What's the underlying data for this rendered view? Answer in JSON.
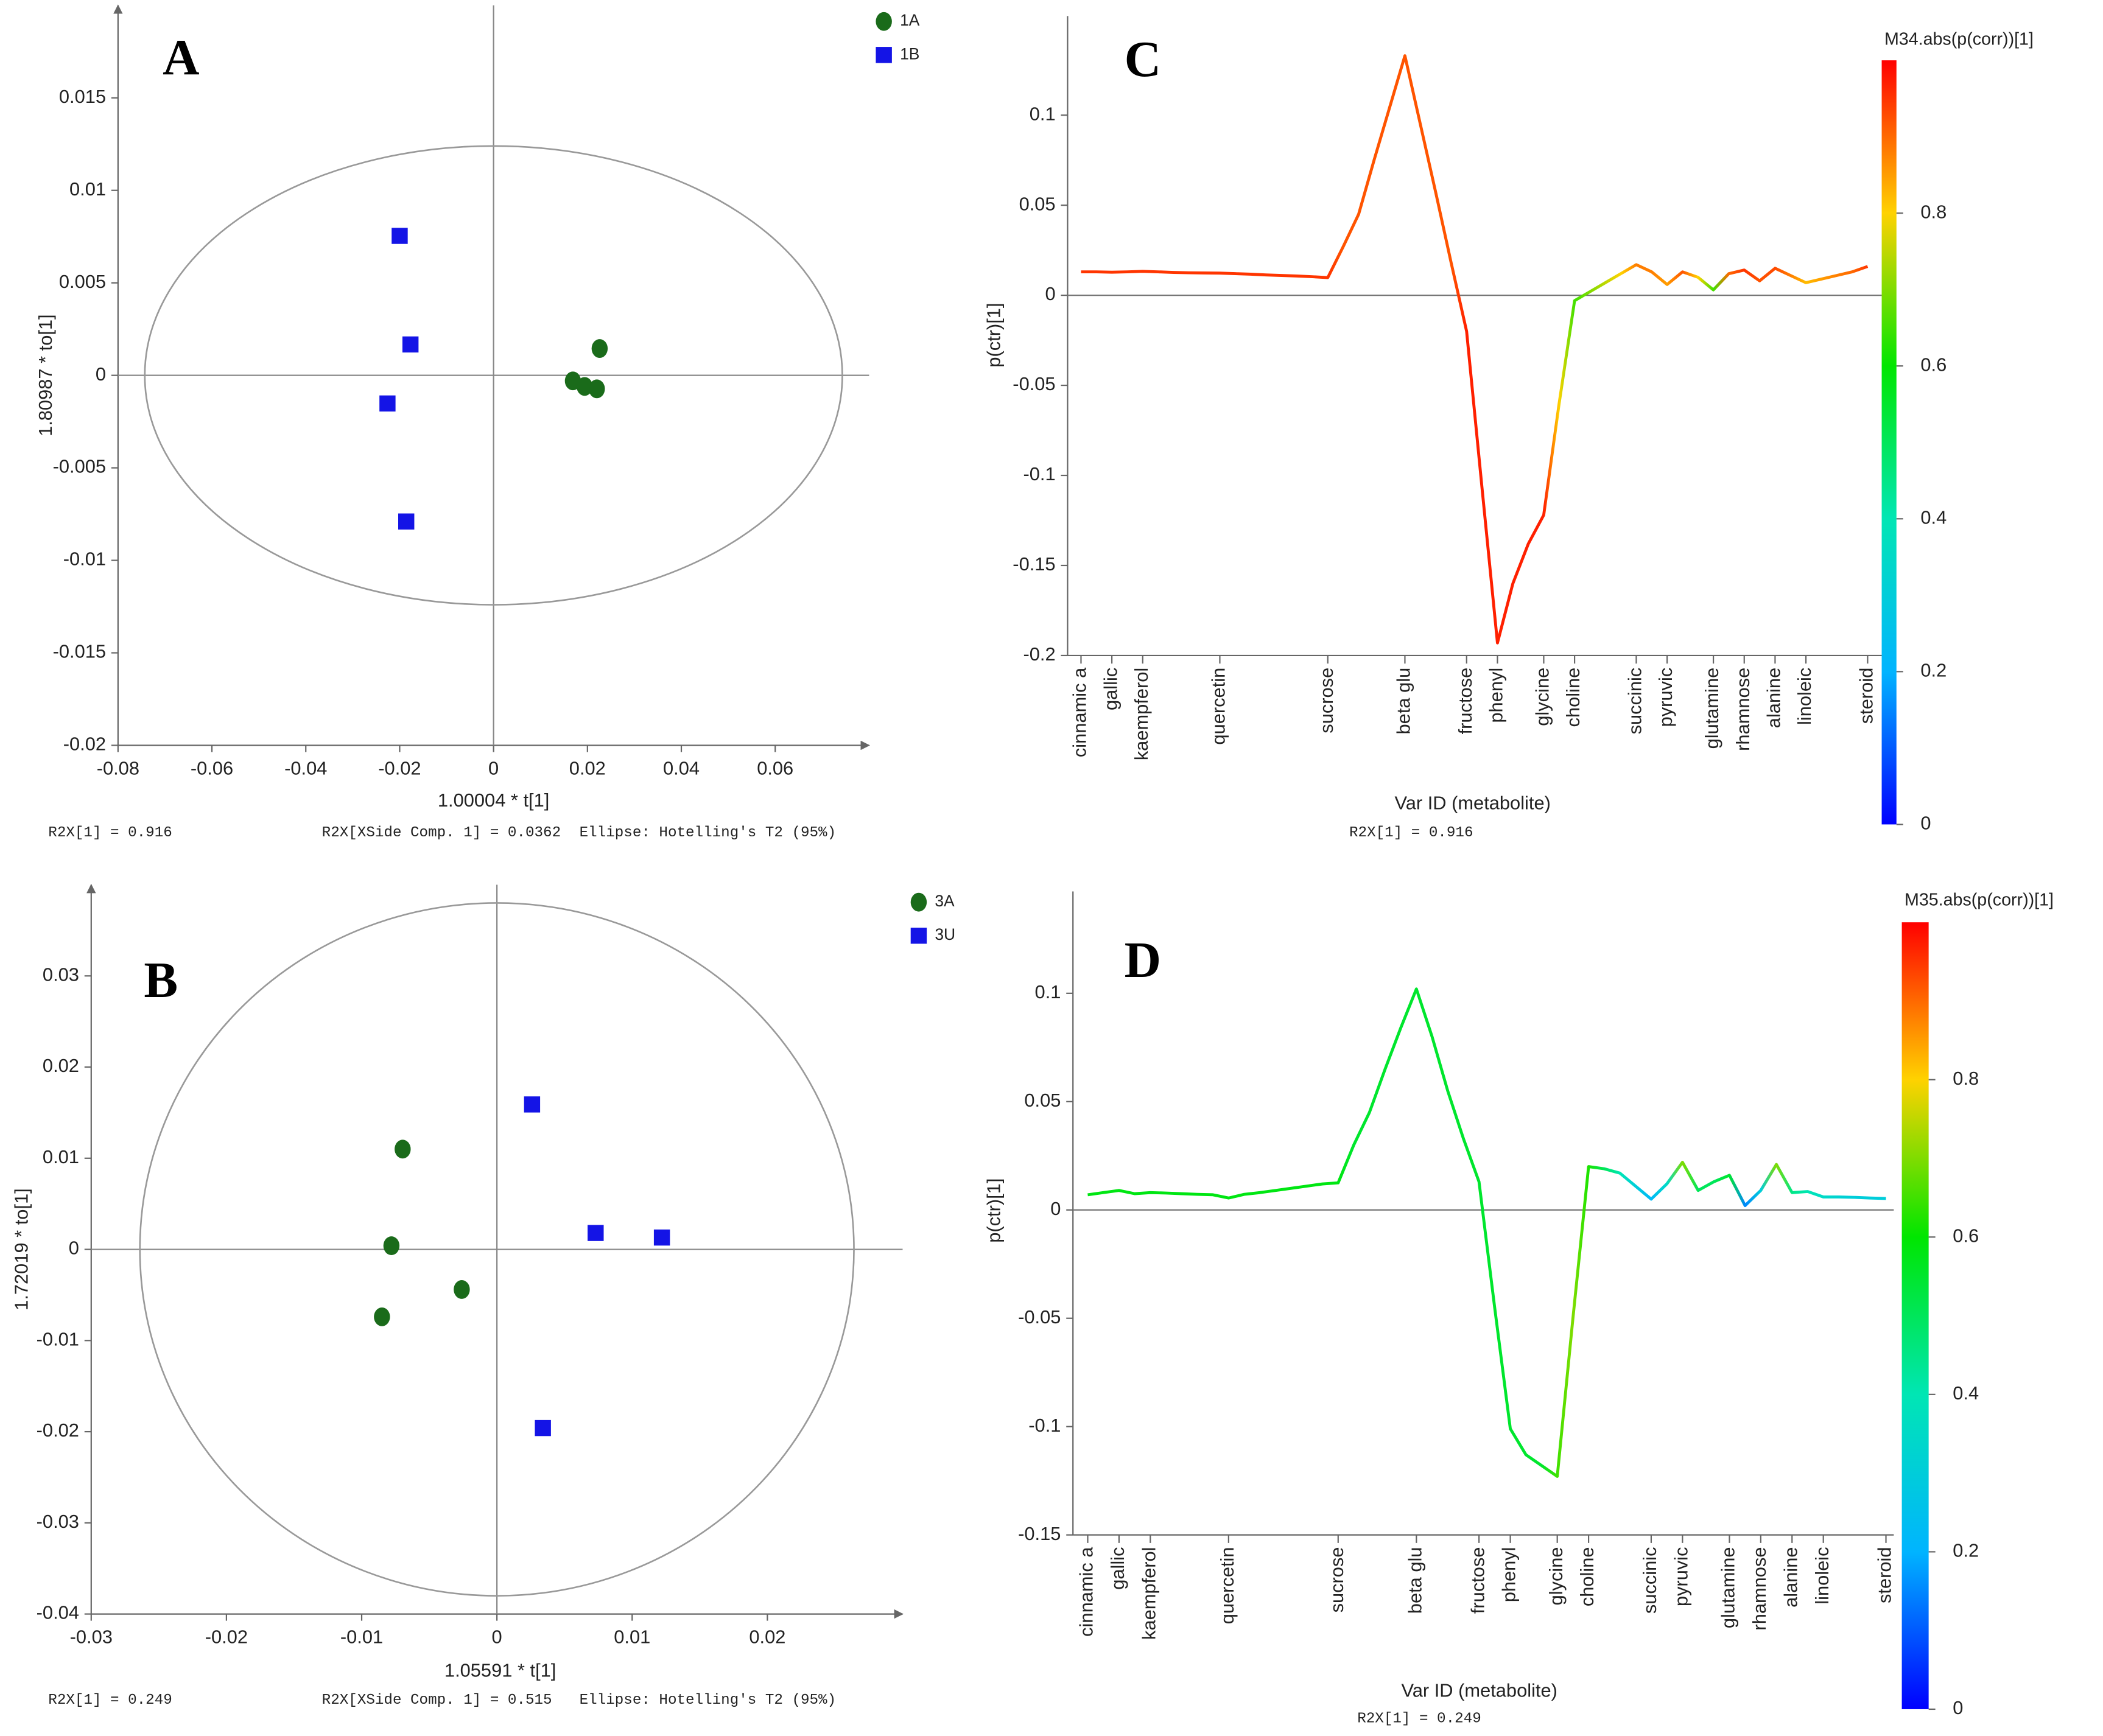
{
  "chart_data": [
    {
      "type": "scatter",
      "label": "A",
      "xlabel": "1.00004 * t[1]",
      "ylabel": "1.80987 * to[1]",
      "xlim": [
        -0.08,
        0.08
      ],
      "ylim": [
        -0.02,
        0.02
      ],
      "xticks": [
        -0.08,
        -0.06,
        -0.04,
        -0.02,
        0,
        0.02,
        0.04,
        0.06
      ],
      "yticks": [
        -0.02,
        -0.015,
        -0.01,
        -0.005,
        0,
        0.005,
        0.01,
        0.015
      ],
      "ellipse": [
        0.0743,
        0.0124
      ],
      "series": [
        {
          "name": "1A",
          "color": "#1a6b1a",
          "marker": "circle",
          "x": [
            0.0226,
            0.0169,
            0.0194,
            0.022
          ],
          "values": [
            0.00145,
            -0.0003,
            -0.0006,
            -0.00073
          ]
        },
        {
          "name": "1B",
          "color": "#1414e6",
          "marker": "square",
          "x": [
            -0.02,
            -0.0177,
            -0.0226,
            -0.0186
          ],
          "values": [
            0.00754,
            0.00167,
            -0.00152,
            -0.0079
          ]
        }
      ],
      "annotations": [
        "R2X[1] = 0.916",
        "R2X[XSide Comp. 1] = 0.0362",
        "Ellipse: Hotelling's T2 (95%)"
      ]
    },
    {
      "type": "scatter",
      "label": "B",
      "xlabel": "1.05591 * t[1]",
      "ylabel": "1.72019 * to[1]",
      "xlim": [
        -0.03,
        0.03
      ],
      "ylim": [
        -0.04,
        0.04
      ],
      "xticks": [
        -0.03,
        -0.02,
        -0.01,
        0,
        0.01,
        0.02
      ],
      "yticks": [
        -0.04,
        -0.03,
        -0.02,
        -0.01,
        0,
        0.01,
        0.02,
        0.03
      ],
      "ellipse": [
        0.0264,
        0.038
      ],
      "series": [
        {
          "name": "3A",
          "color": "#1a6b1a",
          "marker": "circle",
          "x": [
            -0.00697,
            -0.0078,
            -0.0026,
            -0.0085
          ],
          "values": [
            0.011,
            0.0004,
            -0.0044,
            -0.0074
          ]
        },
        {
          "name": "3U",
          "color": "#1414e6",
          "marker": "square",
          "x": [
            0.0026,
            0.0073,
            0.0122,
            0.0034
          ],
          "values": [
            0.0159,
            0.0018,
            0.0013,
            -0.0196
          ]
        }
      ],
      "annotations": [
        "R2X[1] = 0.249",
        "R2X[XSide Comp. 1] = 0.515",
        "Ellipse: Hotelling's T2 (95%)"
      ]
    },
    {
      "type": "line",
      "label": "C",
      "xlabel": "Var ID (metabolite)",
      "ylabel": "p(ctr)[1]",
      "ylim": [
        -0.2,
        0.155
      ],
      "yticks": [
        -0.2,
        -0.15,
        -0.1,
        -0.05,
        0,
        0.05,
        0.1
      ],
      "categories": [
        "cinnamic a",
        null,
        "gallic",
        null,
        "kaempferol",
        null,
        null,
        null,
        null,
        "quercetin",
        null,
        null,
        null,
        null,
        null,
        null,
        "sucrose",
        null,
        null,
        null,
        null,
        "beta glu",
        null,
        null,
        null,
        "fructose",
        null,
        "phenyl",
        null,
        null,
        "glycine",
        null,
        "choline",
        null,
        null,
        null,
        "succinic",
        null,
        "pyruvic",
        null,
        null,
        "glutamine",
        null,
        "rhamnose",
        null,
        "alanine",
        null,
        "linoleic",
        null,
        null,
        null,
        "steroid"
      ],
      "values": [
        0.013,
        0.013,
        0.0128,
        0.013,
        0.0133,
        0.013,
        0.0127,
        0.0125,
        0.0124,
        0.0123,
        0.012,
        0.0117,
        0.0113,
        0.011,
        0.0107,
        0.0103,
        0.0098,
        0.027,
        0.045,
        0.075,
        0.104,
        0.133,
        0.095,
        0.057,
        0.018,
        -0.02,
        -0.107,
        -0.193,
        -0.16,
        -0.138,
        -0.122,
        -0.06,
        -0.003,
        0.002,
        0.007,
        0.012,
        0.017,
        0.013,
        0.006,
        0.013,
        0.01,
        0.003,
        0.012,
        0.014,
        0.008,
        0.015,
        0.011,
        0.007,
        0.009,
        0.011,
        0.013,
        0.016
      ],
      "corr": [
        0.95,
        0.95,
        0.95,
        0.95,
        0.95,
        0.95,
        0.95,
        0.95,
        0.95,
        0.95,
        0.95,
        0.95,
        0.95,
        0.95,
        0.95,
        0.95,
        0.95,
        0.92,
        0.92,
        0.92,
        0.92,
        0.92,
        0.92,
        0.92,
        0.92,
        0.97,
        0.97,
        0.97,
        0.97,
        0.97,
        0.97,
        0.8,
        0.65,
        0.7,
        0.75,
        0.8,
        0.88,
        0.88,
        0.85,
        0.92,
        0.8,
        0.65,
        0.9,
        0.95,
        0.92,
        0.93,
        0.88,
        0.82,
        0.85,
        0.88,
        0.9,
        0.95
      ],
      "colorbar": {
        "title": "M34.abs(p(corr))[1]",
        "lim": [
          0,
          1
        ],
        "ticks": [
          0,
          0.2,
          0.4,
          0.6,
          0.8
        ],
        "colors": [
          "#0000ff",
          "#00b4ff",
          "#00e6b4",
          "#00e600",
          "#ffd200",
          "#ff0000"
        ]
      },
      "annotations": [
        "R2X[1] = 0.916"
      ]
    },
    {
      "type": "line",
      "label": "D",
      "xlabel": "Var ID (metabolite)",
      "ylabel": "p(ctr)[1]",
      "ylim": [
        -0.15,
        0.147
      ],
      "yticks": [
        -0.15,
        -0.1,
        -0.05,
        0,
        0.05,
        0.1
      ],
      "categories": [
        "cinnamic a",
        null,
        "gallic",
        null,
        "kaempferol",
        null,
        null,
        null,
        null,
        "quercetin",
        null,
        null,
        null,
        null,
        null,
        null,
        "sucrose",
        null,
        null,
        null,
        null,
        "beta glu",
        null,
        null,
        null,
        "fructose",
        null,
        "phenyl",
        null,
        null,
        "glycine",
        null,
        "choline",
        null,
        null,
        null,
        "succinic",
        null,
        "pyruvic",
        null,
        null,
        "glutamine",
        null,
        "rhamnose",
        null,
        "alanine",
        null,
        "linoleic",
        null,
        null,
        null,
        "steroid"
      ],
      "values": [
        0.007,
        0.008,
        0.009,
        0.0075,
        0.008,
        0.0078,
        0.0075,
        0.0072,
        0.007,
        0.0055,
        0.0072,
        0.008,
        0.009,
        0.01,
        0.011,
        0.012,
        0.0125,
        0.03,
        0.045,
        0.065,
        0.084,
        0.102,
        0.08,
        0.055,
        0.033,
        0.013,
        -0.045,
        -0.101,
        -0.113,
        -0.118,
        -0.123,
        -0.05,
        0.02,
        0.019,
        0.017,
        0.011,
        0.005,
        0.012,
        0.022,
        0.009,
        0.013,
        0.016,
        0.002,
        0.009,
        0.021,
        0.008,
        0.0085,
        0.006,
        0.006,
        0.0058,
        0.0055,
        0.0053
      ],
      "corr": [
        0.58,
        0.58,
        0.58,
        0.58,
        0.58,
        0.58,
        0.58,
        0.58,
        0.58,
        0.58,
        0.58,
        0.58,
        0.58,
        0.58,
        0.58,
        0.58,
        0.58,
        0.55,
        0.55,
        0.55,
        0.55,
        0.55,
        0.55,
        0.55,
        0.55,
        0.55,
        0.55,
        0.55,
        0.55,
        0.55,
        0.65,
        0.7,
        0.62,
        0.5,
        0.4,
        0.3,
        0.22,
        0.35,
        0.7,
        0.5,
        0.5,
        0.55,
        0.15,
        0.3,
        0.7,
        0.45,
        0.4,
        0.35,
        0.32,
        0.3,
        0.3,
        0.3
      ],
      "colorbar": {
        "title": "M35.abs(p(corr))[1]",
        "lim": [
          0,
          1
        ],
        "ticks": [
          0,
          0.2,
          0.4,
          0.6,
          0.8
        ],
        "colors": [
          "#0000ff",
          "#00b4ff",
          "#00e6b4",
          "#00e600",
          "#ffd200",
          "#ff0000"
        ]
      },
      "annotations": [
        "R2X[1] = 0.249"
      ]
    }
  ]
}
